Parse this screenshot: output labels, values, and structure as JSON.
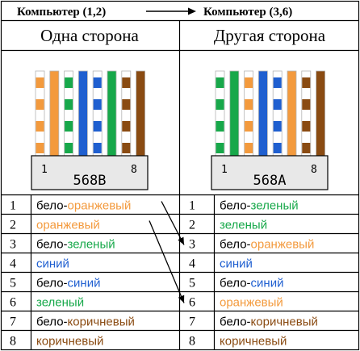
{
  "header": {
    "left": "Компьютер (1,2)",
    "right": "Компьютер (3,6)"
  },
  "colors": {
    "white": "#ffffff",
    "orange": "#f39a3d",
    "green": "#17a84a",
    "blue": "#1f5fd0",
    "brown": "#8a4b12",
    "border": "#000000",
    "plug_face": "#e8e8e8"
  },
  "sides": [
    {
      "title": "Одна сторона",
      "standard": "568B",
      "pin_first": "1",
      "pin_last": "8",
      "plug_wires": [
        {
          "base": "white",
          "stripe": "orange"
        },
        {
          "base": "orange",
          "stripe": null
        },
        {
          "base": "white",
          "stripe": "green"
        },
        {
          "base": "blue",
          "stripe": null
        },
        {
          "base": "white",
          "stripe": "blue"
        },
        {
          "base": "green",
          "stripe": null
        },
        {
          "base": "white",
          "stripe": "brown"
        },
        {
          "base": "brown",
          "stripe": null
        }
      ],
      "rows": [
        {
          "n": "1",
          "parts": [
            {
              "t": "бело-",
              "c": "black"
            },
            {
              "t": "оранжевый",
              "c": "orange"
            }
          ]
        },
        {
          "n": "2",
          "parts": [
            {
              "t": "оранжевый",
              "c": "orange"
            }
          ]
        },
        {
          "n": "3",
          "parts": [
            {
              "t": "бело-",
              "c": "black"
            },
            {
              "t": "зеленый",
              "c": "green"
            }
          ]
        },
        {
          "n": "4",
          "parts": [
            {
              "t": "синий",
              "c": "blue"
            }
          ]
        },
        {
          "n": "5",
          "parts": [
            {
              "t": "бело-",
              "c": "black"
            },
            {
              "t": "синий",
              "c": "blue"
            }
          ]
        },
        {
          "n": "6",
          "parts": [
            {
              "t": "зеленый",
              "c": "green"
            }
          ]
        },
        {
          "n": "7",
          "parts": [
            {
              "t": "бело-",
              "c": "black"
            },
            {
              "t": "коричневый",
              "c": "brown"
            }
          ]
        },
        {
          "n": "8",
          "parts": [
            {
              "t": "коричневый",
              "c": "brown"
            }
          ]
        }
      ]
    },
    {
      "title": "Другая сторона",
      "standard": "568A",
      "pin_first": "1",
      "pin_last": "8",
      "plug_wires": [
        {
          "base": "white",
          "stripe": "green"
        },
        {
          "base": "green",
          "stripe": null
        },
        {
          "base": "white",
          "stripe": "orange"
        },
        {
          "base": "blue",
          "stripe": null
        },
        {
          "base": "white",
          "stripe": "blue"
        },
        {
          "base": "orange",
          "stripe": null
        },
        {
          "base": "white",
          "stripe": "brown"
        },
        {
          "base": "brown",
          "stripe": null
        }
      ],
      "rows": [
        {
          "n": "1",
          "parts": [
            {
              "t": "бело-",
              "c": "black"
            },
            {
              "t": "зеленый",
              "c": "green"
            }
          ]
        },
        {
          "n": "2",
          "parts": [
            {
              "t": "зеленый",
              "c": "green"
            }
          ]
        },
        {
          "n": "3",
          "parts": [
            {
              "t": "бело-",
              "c": "black"
            },
            {
              "t": "оранжевый",
              "c": "orange"
            }
          ]
        },
        {
          "n": "4",
          "parts": [
            {
              "t": "синий",
              "c": "blue"
            }
          ]
        },
        {
          "n": "5",
          "parts": [
            {
              "t": "бело-",
              "c": "black"
            },
            {
              "t": "синий",
              "c": "blue"
            }
          ]
        },
        {
          "n": "6",
          "parts": [
            {
              "t": "оранжевый",
              "c": "orange"
            }
          ]
        },
        {
          "n": "7",
          "parts": [
            {
              "t": "бело-",
              "c": "black"
            },
            {
              "t": "коричневый",
              "c": "brown"
            }
          ]
        },
        {
          "n": "8",
          "parts": [
            {
              "t": "коричневый",
              "c": "brown"
            }
          ]
        }
      ]
    }
  ],
  "crossovers": [
    {
      "from": "1",
      "to": "3"
    },
    {
      "from": "2",
      "to": "6"
    }
  ]
}
